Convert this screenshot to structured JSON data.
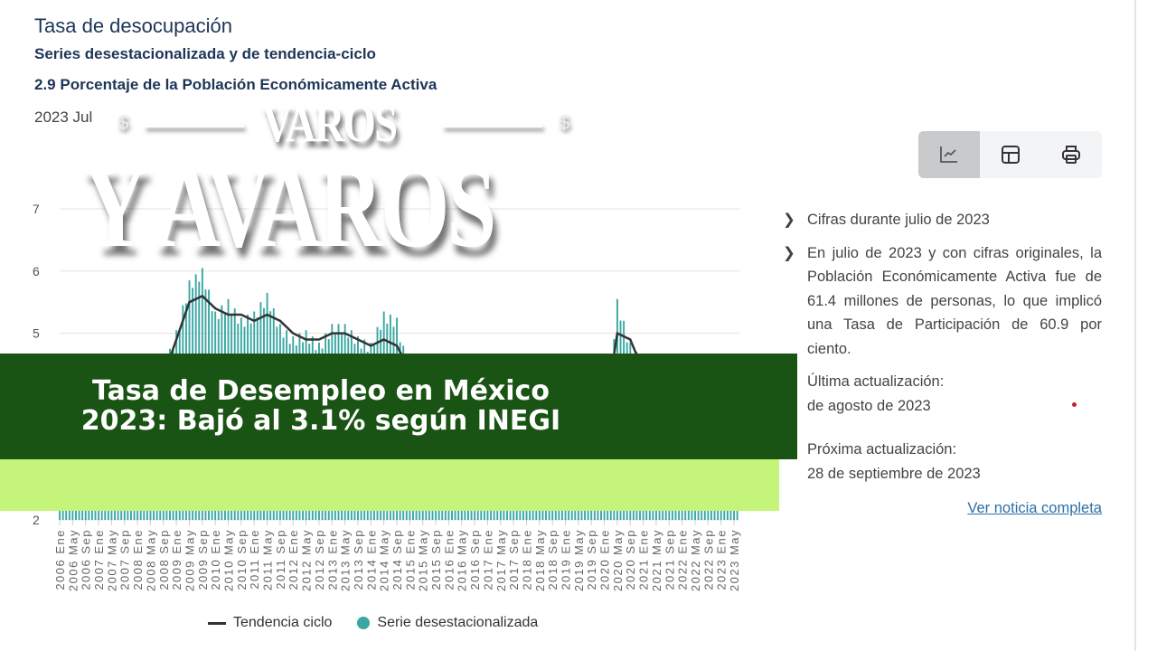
{
  "header": {
    "title": "Tasa de desocupación",
    "subtitle": "Series desestacionalizada y de tendencia-ciclo",
    "unit": "2.9  Porcentaje de la Población Económicamente Activa",
    "period": "2023 Jul"
  },
  "toolbar": {
    "buttons": [
      {
        "icon": "line-chart-icon",
        "active": true
      },
      {
        "icon": "table-icon",
        "active": false
      },
      {
        "icon": "printer-icon",
        "active": false
      }
    ]
  },
  "panel": {
    "bullet1": "Cifras durante julio de 2023",
    "bullet2": "En julio de 2023 y con cifras originales, la Población Económicamente Activa fue de 61.4 millones de personas, lo que implicó una Tasa de Participación de 60.9 por ciento.",
    "last_update_label": "Última actualización:",
    "last_update_value": "de agosto de 2023",
    "next_update_label": "Próxima actualización:",
    "next_update_value": "28 de septiembre de 2023",
    "link": "Ver noticia completa"
  },
  "overlay": {
    "logo_top": "VAROS",
    "logo_bottom": "Y AVAROS",
    "logo_symbol": "$",
    "headline_line1": "Tasa de Desempleo en México",
    "headline_line2": "2023: Bajó al 3.1% según INEGI",
    "banner_color": "#1a5414",
    "band_color": "#c4f57a"
  },
  "chart_data": {
    "type": "bar",
    "ylim": [
      2,
      7
    ],
    "yticks": [
      "7",
      "6",
      "5",
      "2"
    ],
    "ytick_values": [
      7,
      6,
      5,
      2
    ],
    "grid": true,
    "legend_position": "bottom",
    "categories": [
      "2006 Ene",
      "2006 May",
      "2006 Sep",
      "2007 Ene",
      "2007 May",
      "2007 Sep",
      "2008 Ene",
      "2008 May",
      "2008 Sep",
      "2009 Ene",
      "2009 May",
      "2009 Sep",
      "2010 Ene",
      "2010 May",
      "2010 Sep",
      "2011 Ene",
      "2011 May",
      "2011 Sep",
      "2012 Ene",
      "2012 May",
      "2012 Sep",
      "2013 Ene",
      "2013 May",
      "2013 Sep",
      "2014 Ene",
      "2014 May",
      "2014 Sep",
      "2015 Ene",
      "2015 May",
      "2015 Sep",
      "2016 Ene",
      "2016 May",
      "2016 Sep",
      "2017 Ene",
      "2017 May",
      "2017 Sep",
      "2018 Ene",
      "2018 May",
      "2018 Sep",
      "2019 Ene",
      "2019 May",
      "2019 Sep",
      "2020 Ene",
      "2020 May",
      "2020 Sep",
      "2021 Ene",
      "2021 May",
      "2021 Sep",
      "2022 Ene",
      "2022 May",
      "2022 Sep",
      "2023 Ene",
      "2023 May"
    ],
    "series": [
      {
        "name": "Tendencia ciclo",
        "kind": "line",
        "color": "#333333",
        "values": [
          3.6,
          3.5,
          3.7,
          3.7,
          3.7,
          3.8,
          3.9,
          4.0,
          4.3,
          4.9,
          5.5,
          5.6,
          5.4,
          5.3,
          5.3,
          5.2,
          5.3,
          5.2,
          5.0,
          4.9,
          4.9,
          5.0,
          5.0,
          4.9,
          4.8,
          4.9,
          4.8,
          4.4,
          4.3,
          4.2,
          4.1,
          4.0,
          3.8,
          3.6,
          3.5,
          3.4,
          3.3,
          3.3,
          3.3,
          3.5,
          3.5,
          3.6,
          3.6,
          5.0,
          4.9,
          4.4,
          4.1,
          4.0,
          3.6,
          3.3,
          3.3,
          3.0,
          2.9
        ]
      },
      {
        "name": "Serie desestacionalizada",
        "kind": "bar",
        "color": "#3aa7a3",
        "values": [
          3.5,
          3.6,
          3.8,
          3.6,
          3.8,
          3.9,
          3.8,
          4.1,
          4.4,
          5.0,
          5.8,
          6.0,
          5.3,
          5.5,
          5.2,
          5.3,
          5.6,
          5.1,
          4.9,
          5.0,
          4.8,
          5.1,
          5.1,
          4.9,
          4.8,
          5.3,
          5.2,
          4.3,
          4.4,
          4.1,
          4.2,
          4.0,
          3.7,
          3.5,
          3.6,
          3.4,
          3.3,
          3.4,
          3.2,
          3.6,
          3.5,
          3.7,
          3.6,
          5.5,
          4.8,
          4.5,
          4.0,
          4.1,
          3.7,
          3.3,
          3.2,
          3.0,
          3.1
        ]
      }
    ],
    "last_label": "2023 May"
  }
}
